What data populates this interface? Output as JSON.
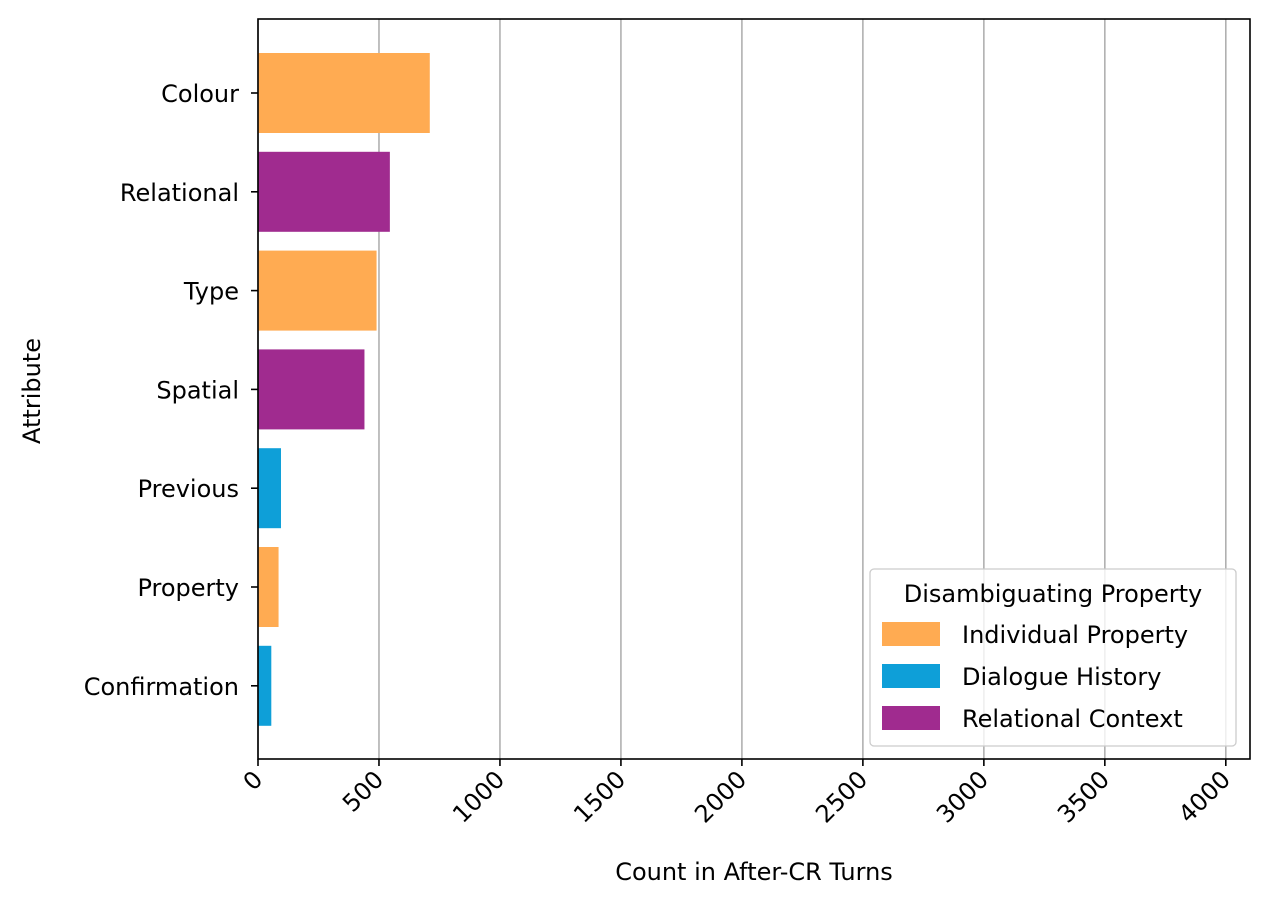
{
  "chart_data": {
    "type": "bar",
    "orientation": "horizontal",
    "title": "",
    "xlabel": "Count in After-CR Turns",
    "ylabel": "Attribute",
    "xlim": [
      0,
      4100
    ],
    "xticks": [
      0,
      500,
      1000,
      1500,
      2000,
      2500,
      3000,
      3500,
      4000
    ],
    "xtick_labels": [
      "0",
      "500",
      "1000",
      "1500",
      "2000",
      "2500",
      "3000",
      "3500",
      "4000"
    ],
    "grid": "vertical",
    "legend_position": "bottom-right",
    "categories": [
      "Colour",
      "Relational",
      "Type",
      "Spatial",
      "Previous",
      "Property",
      "Confirmation"
    ],
    "values": [
      710,
      545,
      490,
      440,
      95,
      85,
      55
    ],
    "bar_groups": [
      "Individual Property",
      "Relational Context",
      "Individual Property",
      "Relational Context",
      "Dialogue History",
      "Individual Property",
      "Dialogue History"
    ],
    "legend": {
      "title": "Disambiguating Property",
      "entries": [
        {
          "label": "Individual Property",
          "color": "#ffab52"
        },
        {
          "label": "Dialogue History",
          "color": "#0e9fd8"
        },
        {
          "label": "Relational Context",
          "color": "#a02b8f"
        }
      ]
    }
  }
}
